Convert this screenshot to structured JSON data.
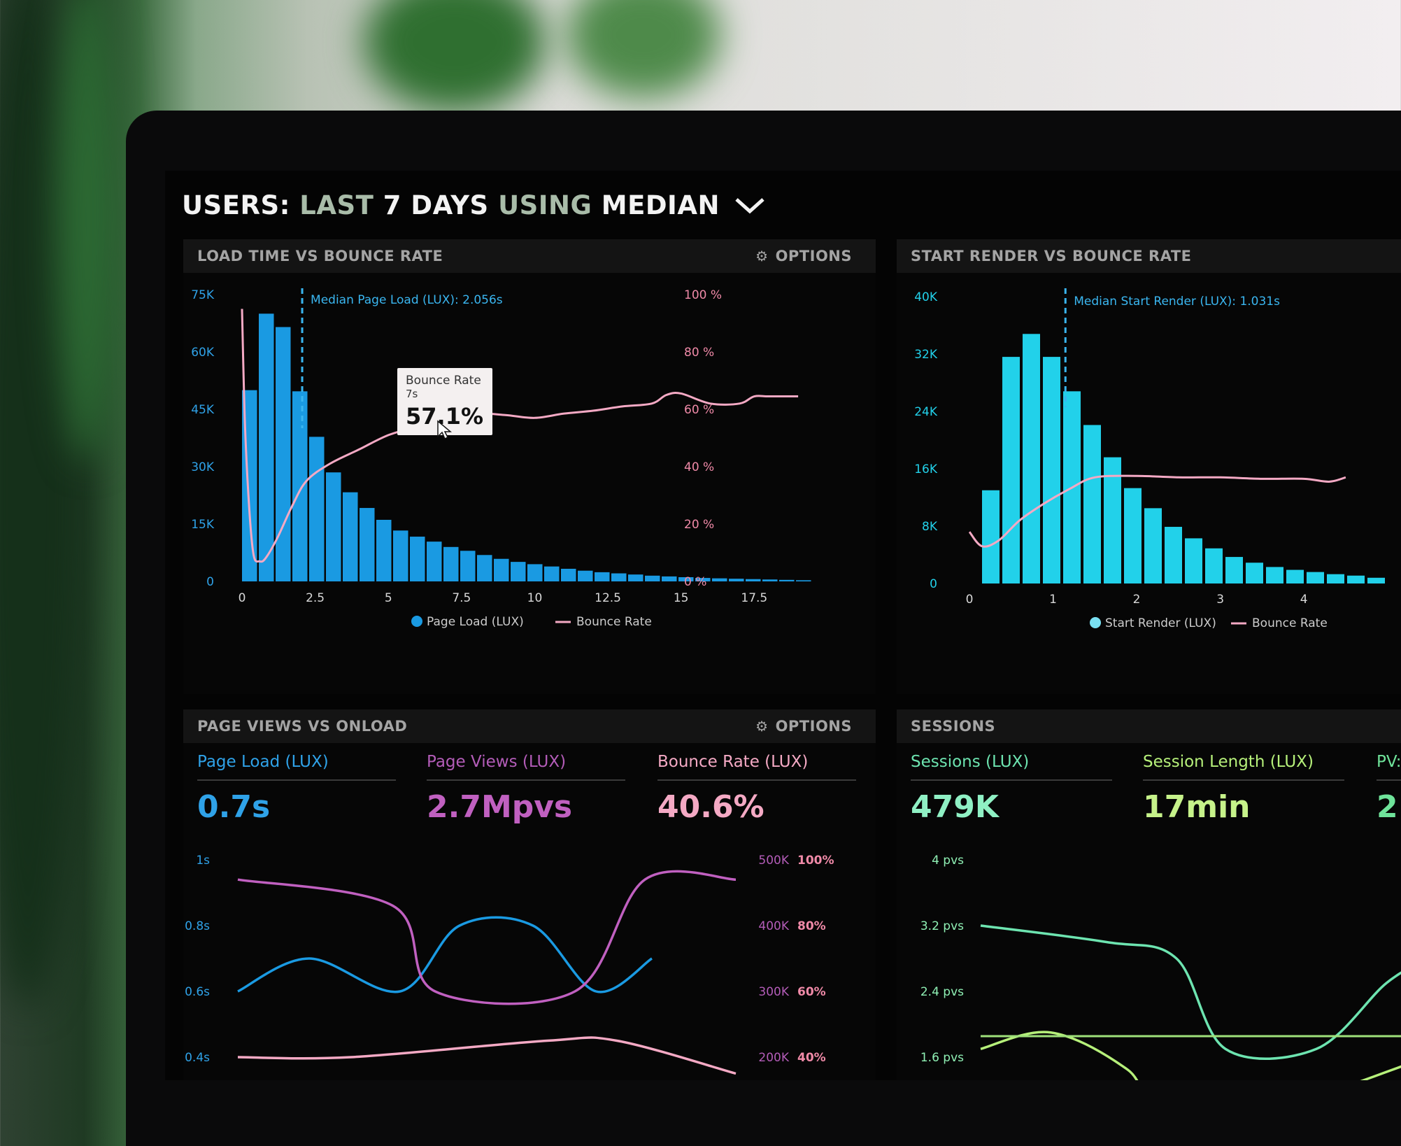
{
  "header": {
    "users": "USERS:",
    "last": "LAST",
    "days": "7 DAYS",
    "using": "USING",
    "median": "MEDIAN"
  },
  "icons": {
    "header": "chevron-down-icon",
    "options": "gear-icon",
    "cursor": "cursor-icon"
  },
  "colors": {
    "blue": "#1a9ae2",
    "cyan": "#22d1ea",
    "pink": "#f4a9c4",
    "magenta": "#c060c0",
    "green_light": "#b6f07a",
    "green_mint": "#6de4b0"
  },
  "panel1": {
    "title": "LOAD TIME VS BOUNCE RATE",
    "options": "OPTIONS",
    "median_label": "Median Page Load (LUX): 2.056s",
    "tooltip": {
      "title": "Bounce Rate",
      "sub": "7s",
      "value": "57.1%"
    },
    "legend": [
      "Page Load (LUX)",
      "Bounce Rate"
    ],
    "chart_data": {
      "type": "bar",
      "x_ticks": [
        "0",
        "2.5",
        "5",
        "7.5",
        "10",
        "12.5",
        "15",
        "17.5"
      ],
      "y_left_ticks": [
        "75K",
        "60K",
        "45K",
        "30K",
        "15K",
        "0"
      ],
      "y_right_ticks": [
        "100 %",
        "80 %",
        "60 %",
        "40 %",
        "20 %",
        "0 %"
      ],
      "ylim": [
        0,
        75000
      ],
      "y2lim": [
        0,
        100
      ],
      "bar_values": [
        50000,
        70000,
        66500,
        49700,
        37800,
        28500,
        23300,
        19200,
        16100,
        13300,
        11700,
        10400,
        9000,
        8000,
        6900,
        5900,
        5100,
        4500,
        3900,
        3300,
        2800,
        2400,
        2100,
        1800,
        1500,
        1300,
        1100,
        900,
        800,
        700,
        600,
        500,
        400,
        300
      ],
      "bounce_rate": {
        "x": [
          0,
          0.1,
          0.25,
          0.4,
          0.6,
          0.8,
          1.2,
          1.7,
          2.2,
          3,
          4,
          5,
          6,
          7,
          8,
          9,
          10,
          11,
          12,
          13,
          14,
          14.5,
          15,
          16,
          17,
          17.5,
          18,
          19
        ],
        "y": [
          95,
          55,
          25,
          9,
          7,
          8,
          15,
          26,
          35,
          41,
          46,
          51,
          54,
          57,
          58.5,
          58,
          57,
          58.5,
          59.5,
          61,
          62,
          65,
          65.5,
          62,
          62,
          64.5,
          64.5,
          64.5
        ]
      },
      "median_x": 2.056
    }
  },
  "panel2": {
    "title": "START RENDER VS BOUNCE RATE",
    "median_label": "Median Start Render (LUX): 1.031s",
    "legend": [
      "Start Render (LUX)",
      "Bounce Rate"
    ],
    "chart_data": {
      "type": "bar",
      "x_ticks": [
        "0",
        "1",
        "2",
        "3",
        "4"
      ],
      "y_left_ticks": [
        "40K",
        "32K",
        "24K",
        "16K",
        "8K",
        "0"
      ],
      "ylim": [
        0,
        40000
      ],
      "bar_values": [
        13000,
        31600,
        34800,
        31600,
        26800,
        22100,
        17600,
        13300,
        10500,
        7900,
        6300,
        4900,
        3700,
        2900,
        2300,
        1900,
        1600,
        1300,
        1100,
        800
      ],
      "bounce_rate": {
        "x": [
          0,
          0.15,
          0.35,
          0.6,
          0.9,
          1.2,
          1.5,
          2,
          2.5,
          3,
          3.5,
          4,
          4.3,
          4.5
        ],
        "y": [
          18,
          13,
          15,
          22,
          28,
          33,
          37,
          37.5,
          37,
          37,
          36.5,
          36.5,
          35.5,
          37
        ]
      },
      "median_x": 1.031
    }
  },
  "panel3": {
    "title": "PAGE VIEWS VS ONLOAD",
    "options": "OPTIONS",
    "kpis": [
      {
        "label": "Page Load (LUX)",
        "value": "0.7s"
      },
      {
        "label": "Page Views (LUX)",
        "value": "2.7Mpvs"
      },
      {
        "label": "Bounce Rate (LUX)",
        "value": "40.6%"
      }
    ],
    "chart_data": {
      "type": "line",
      "y_left_ticks": [
        "1s",
        "0.8s",
        "0.6s",
        "0.4s"
      ],
      "y_right_ticks_a": [
        "500K",
        "400K",
        "300K",
        "200K"
      ],
      "y_right_ticks_b": [
        "100%",
        "80%",
        "60%",
        "40%"
      ],
      "series": [
        {
          "name": "Page Load (LUX)",
          "values": [
            0.6,
            0.7,
            0.6,
            0.8,
            0.8,
            0.6,
            0.7
          ]
        },
        {
          "name": "Page Views (LUX)",
          "values": [
            470000,
            430000,
            300000,
            300000,
            470000,
            470000
          ]
        },
        {
          "name": "Bounce Rate (LUX)",
          "values": [
            40,
            40,
            45,
            45,
            35
          ]
        }
      ]
    }
  },
  "panel4": {
    "title": "SESSIONS",
    "kpis": [
      {
        "label": "Sessions (LUX)",
        "value": "479K"
      },
      {
        "label": "Session Length (LUX)",
        "value": "17min"
      },
      {
        "label": "PV:",
        "value": "2"
      }
    ],
    "chart_data": {
      "type": "line",
      "y_left_ticks": [
        "4 pvs",
        "3.2 pvs",
        "2.4 pvs",
        "1.6 pvs"
      ],
      "series": [
        {
          "name": "Sessions (LUX)",
          "values": [
            3.2,
            3.0,
            2.8,
            1.7,
            1.7,
            2.5,
            2.8
          ]
        },
        {
          "name": "Session Length (LUX)",
          "values": [
            1.7,
            1.9,
            1.5,
            1.0,
            1.6
          ]
        }
      ]
    }
  }
}
